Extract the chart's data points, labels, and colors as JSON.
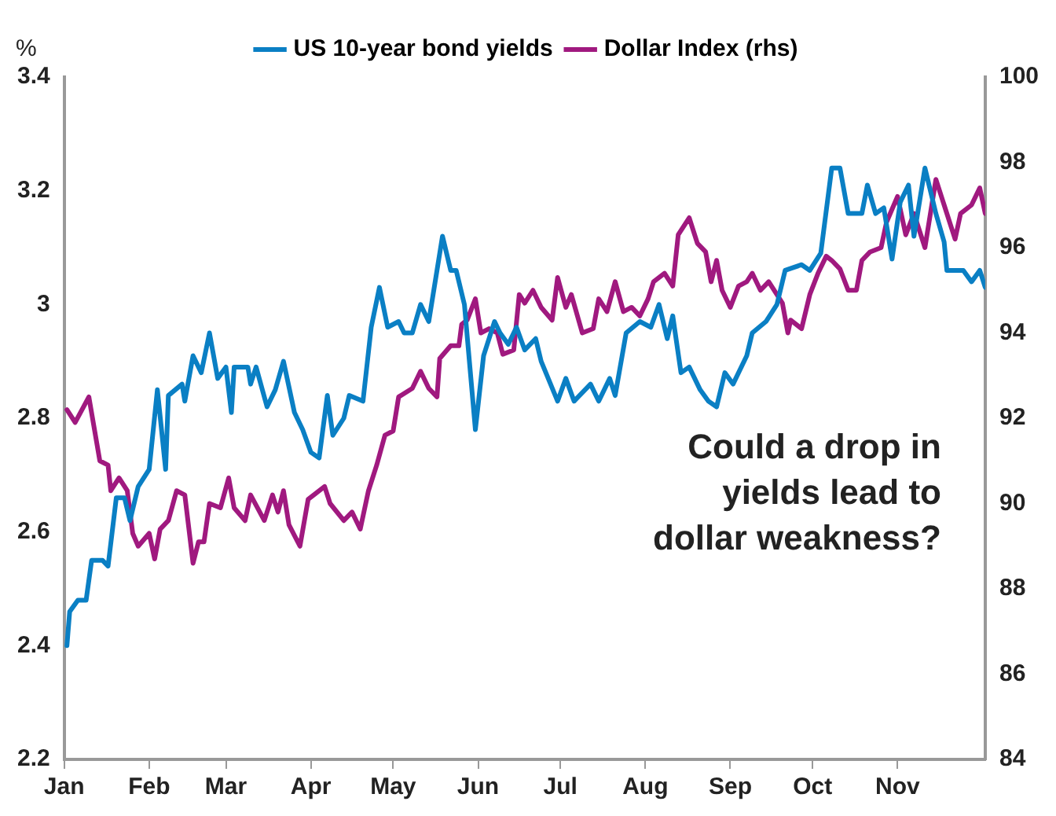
{
  "chart_data": {
    "type": "line",
    "ylabel": "%",
    "annotations": [
      "Could a drop in\nyields lead to\ndollar weakness?"
    ],
    "xlim": [
      "--01-01",
      "--12-03"
    ],
    "xticks": [
      {
        "value": "--01-01",
        "label": "Jan"
      },
      {
        "value": "--02-01",
        "label": "Feb"
      },
      {
        "value": "--03-01",
        "label": "Mar"
      },
      {
        "value": "--04-01",
        "label": "Apr"
      },
      {
        "value": "--05-01",
        "label": "May"
      },
      {
        "value": "--06-01",
        "label": "Jun"
      },
      {
        "value": "--07-01",
        "label": "Jul"
      },
      {
        "value": "--08-01",
        "label": "Aug"
      },
      {
        "value": "--09-01",
        "label": "Sep"
      },
      {
        "value": "--10-01",
        "label": "Oct"
      },
      {
        "value": "--11-01",
        "label": "Nov"
      }
    ],
    "ylim": [
      2.2,
      3.4
    ],
    "yticks": [
      2.2,
      2.4,
      2.6,
      2.8,
      3,
      3.2,
      3.4
    ],
    "y2lim": [
      84,
      100
    ],
    "y2ticks": [
      84,
      86,
      88,
      90,
      92,
      94,
      96,
      98,
      100
    ],
    "grid": false,
    "legend": "top",
    "marker": "none",
    "line_style": "solid",
    "series": [
      {
        "name": "US 10-year bond yields",
        "color": "#0a7fc4",
        "x": [
          "--01-02",
          "--01-03",
          "--01-06",
          "--01-09",
          "--01-11",
          "--01-15",
          "--01-17",
          "--01-20",
          "--01-23",
          "--01-25",
          "--01-28",
          "--02-01",
          "--02-04",
          "--02-07",
          "--02-08",
          "--02-13",
          "--02-14",
          "--02-17",
          "--02-20",
          "--02-23",
          "--02-26",
          "--03-01",
          "--03-03",
          "--03-04",
          "--03-09",
          "--03-10",
          "--03-12",
          "--03-16",
          "--03-19",
          "--03-22",
          "--03-26",
          "--03-29",
          "--04-01",
          "--04-04",
          "--04-07",
          "--04-09",
          "--04-13",
          "--04-15",
          "--04-20",
          "--04-23",
          "--04-26",
          "--04-29",
          "--05-03",
          "--05-05",
          "--05-08",
          "--05-11",
          "--05-14",
          "--05-15",
          "--05-19",
          "--05-22",
          "--05-24",
          "--05-27",
          "--05-31",
          "--06-03",
          "--06-07",
          "--06-09",
          "--06-12",
          "--06-15",
          "--06-18",
          "--06-22",
          "--06-24",
          "--06-30",
          "--07-03",
          "--07-06",
          "--07-12",
          "--07-15",
          "--07-19",
          "--07-21",
          "--07-25",
          "--07-30",
          "--08-03",
          "--08-06",
          "--08-09",
          "--08-11",
          "--08-14",
          "--08-17",
          "--08-21",
          "--08-24",
          "--08-27",
          "--08-30",
          "--09-02",
          "--09-07",
          "--09-09",
          "--09-14",
          "--09-18",
          "--09-21",
          "--09-27",
          "--09-30",
          "--10-04",
          "--10-08",
          "--10-11",
          "--10-14",
          "--10-19",
          "--10-21",
          "--10-24",
          "--10-27",
          "--10-30",
          "--11-02",
          "--11-05",
          "--11-07",
          "--11-11",
          "--11-15",
          "--11-18",
          "--11-19",
          "--11-25",
          "--11-28",
          "--12-01",
          "--12-03"
        ],
        "values": [
          2.4,
          2.46,
          2.48,
          2.48,
          2.55,
          2.55,
          2.54,
          2.66,
          2.66,
          2.62,
          2.68,
          2.71,
          2.85,
          2.71,
          2.84,
          2.86,
          2.83,
          2.91,
          2.88,
          2.95,
          2.87,
          2.89,
          2.81,
          2.89,
          2.89,
          2.86,
          2.89,
          2.82,
          2.85,
          2.9,
          2.81,
          2.78,
          2.74,
          2.73,
          2.84,
          2.77,
          2.8,
          2.84,
          2.83,
          2.96,
          3.03,
          2.96,
          2.97,
          2.95,
          2.95,
          3.0,
          2.97,
          3.0,
          3.12,
          3.06,
          3.06,
          3.0,
          2.78,
          2.91,
          2.97,
          2.95,
          2.93,
          2.96,
          2.92,
          2.94,
          2.9,
          2.83,
          2.87,
          2.83,
          2.86,
          2.83,
          2.87,
          2.84,
          2.95,
          2.97,
          2.96,
          3.0,
          2.94,
          2.98,
          2.88,
          2.89,
          2.85,
          2.83,
          2.82,
          2.88,
          2.86,
          2.91,
          2.95,
          2.97,
          3.0,
          3.06,
          3.07,
          3.06,
          3.09,
          3.24,
          3.24,
          3.16,
          3.16,
          3.21,
          3.16,
          3.17,
          3.08,
          3.18,
          3.21,
          3.12,
          3.24,
          3.16,
          3.11,
          3.06,
          3.06,
          3.04,
          3.06,
          3.03
        ]
      },
      {
        "name": "Dollar Index (rhs)",
        "color": "#a0197f",
        "axis": "y2",
        "x": [
          "--01-02",
          "--01-05",
          "--01-10",
          "--01-14",
          "--01-17",
          "--01-18",
          "--01-21",
          "--01-24",
          "--01-26",
          "--01-28",
          "--02-01",
          "--02-03",
          "--02-05",
          "--02-08",
          "--02-11",
          "--02-14",
          "--02-17",
          "--02-19",
          "--02-21",
          "--02-23",
          "--02-27",
          "--03-02",
          "--03-04",
          "--03-08",
          "--03-10",
          "--03-15",
          "--03-18",
          "--03-20",
          "--03-22",
          "--03-24",
          "--03-28",
          "--03-31",
          "--04-06",
          "--04-08",
          "--04-13",
          "--04-16",
          "--04-19",
          "--04-22",
          "--04-25",
          "--04-28",
          "--05-01",
          "--05-03",
          "--05-08",
          "--05-11",
          "--05-14",
          "--05-17",
          "--05-18",
          "--05-22",
          "--05-25",
          "--05-26",
          "--05-28",
          "--05-31",
          "--06-02",
          "--06-05",
          "--06-08",
          "--06-10",
          "--06-14",
          "--06-16",
          "--06-18",
          "--06-21",
          "--06-24",
          "--06-28",
          "--06-30",
          "--07-03",
          "--07-05",
          "--07-09",
          "--07-13",
          "--07-15",
          "--07-18",
          "--07-21",
          "--07-24",
          "--07-27",
          "--07-30",
          "--08-02",
          "--08-04",
          "--08-08",
          "--08-11",
          "--08-13",
          "--08-17",
          "--08-20",
          "--08-23",
          "--08-25",
          "--08-27",
          "--08-29",
          "--09-01",
          "--09-04",
          "--09-07",
          "--09-09",
          "--09-12",
          "--09-15",
          "--09-18",
          "--09-20",
          "--09-22",
          "--09-23",
          "--09-27",
          "--09-30",
          "--10-03",
          "--10-06",
          "--10-08",
          "--10-11",
          "--10-14",
          "--10-17",
          "--10-19",
          "--10-22",
          "--10-26",
          "--10-28",
          "--11-01",
          "--11-04",
          "--11-07",
          "--11-11",
          "--11-15",
          "--11-18",
          "--11-22",
          "--11-24",
          "--11-28",
          "--12-01",
          "--12-03"
        ],
        "values": [
          92.2,
          91.9,
          92.5,
          91.0,
          90.9,
          90.3,
          90.6,
          90.3,
          89.3,
          89.0,
          89.3,
          88.7,
          89.4,
          89.6,
          90.3,
          90.2,
          88.6,
          89.1,
          89.1,
          90.0,
          89.9,
          90.6,
          89.9,
          89.6,
          90.2,
          89.6,
          90.2,
          89.8,
          90.3,
          89.5,
          89.0,
          90.1,
          90.4,
          90.0,
          89.6,
          89.8,
          89.4,
          90.3,
          90.9,
          91.6,
          91.7,
          92.5,
          92.7,
          93.1,
          92.7,
          92.5,
          93.4,
          93.7,
          93.7,
          94.2,
          94.3,
          94.8,
          94.0,
          94.1,
          94.0,
          93.5,
          93.6,
          94.9,
          94.7,
          95.0,
          94.6,
          94.3,
          95.3,
          94.6,
          94.9,
          94.0,
          94.1,
          94.8,
          94.5,
          95.2,
          94.5,
          94.6,
          94.4,
          94.8,
          95.2,
          95.4,
          95.1,
          96.3,
          96.7,
          96.1,
          95.9,
          95.2,
          95.7,
          95.0,
          94.6,
          95.1,
          95.2,
          95.4,
          95.0,
          95.2,
          94.9,
          94.7,
          94.0,
          94.3,
          94.1,
          94.9,
          95.4,
          95.8,
          95.7,
          95.5,
          95.0,
          95.0,
          95.7,
          95.9,
          96.0,
          96.6,
          97.2,
          96.3,
          96.8,
          96.0,
          97.6,
          97.0,
          96.2,
          96.8,
          97.0,
          97.4,
          96.8
        ]
      }
    ]
  }
}
